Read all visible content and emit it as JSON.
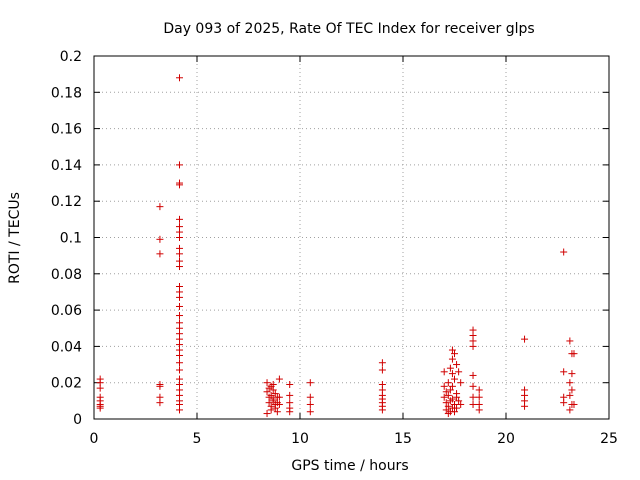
{
  "chart_data": {
    "type": "scatter",
    "title": "Day 093 of 2025, Rate Of TEC Index for receiver glps",
    "xlabel": "GPS time / hours",
    "ylabel": "ROTI / TECUs",
    "xlim": [
      0,
      25
    ],
    "ylim": [
      0,
      0.2
    ],
    "xticks": [
      "0",
      "5",
      "10",
      "15",
      "20",
      "25"
    ],
    "yticks": [
      "0",
      "0.02",
      "0.04",
      "0.06",
      "0.08",
      "0.1",
      "0.12",
      "0.14",
      "0.16",
      "0.18",
      "0.2"
    ],
    "grid": true,
    "marker": "plus",
    "color": "#d00000",
    "series": [
      {
        "x": [
          0.3,
          0.3,
          0.3,
          0.3,
          0.3,
          0.3,
          0.3,
          0.3,
          3.2,
          3.2,
          3.2,
          3.2,
          3.2,
          3.2,
          3.2,
          4.15,
          4.15,
          4.15,
          4.15,
          4.15,
          4.15,
          4.15,
          4.15,
          4.15,
          4.15,
          4.15,
          4.15,
          4.15,
          4.15,
          4.15,
          4.15,
          4.15,
          4.15,
          4.15,
          4.15,
          4.15,
          4.15,
          4.15,
          4.15,
          4.15,
          4.15,
          4.15,
          4.15,
          4.15,
          4.15,
          4.15,
          4.15,
          4.15,
          8.4,
          8.4,
          8.5,
          8.5,
          8.6,
          8.6,
          8.7,
          8.7,
          8.8,
          8.8,
          8.9,
          8.9,
          8.5,
          8.6,
          8.7,
          8.8,
          8.4,
          8.9,
          8.6,
          8.7,
          9.0,
          9.0,
          9.0,
          9.5,
          9.5,
          9.5,
          9.5,
          9.5,
          10.5,
          10.5,
          10.5,
          10.5,
          14.0,
          14.0,
          14.0,
          14.0,
          14.0,
          14.0,
          14.0,
          14.0,
          14.0,
          17.0,
          17.0,
          17.0,
          17.1,
          17.1,
          17.1,
          17.2,
          17.2,
          17.2,
          17.3,
          17.3,
          17.3,
          17.4,
          17.4,
          17.4,
          17.4,
          17.4,
          17.5,
          17.5,
          17.5,
          17.6,
          17.6,
          17.6,
          17.7,
          17.7,
          17.8,
          17.8,
          17.5,
          17.3,
          17.2,
          17.6,
          17.4,
          18.4,
          18.4,
          18.4,
          18.4,
          18.4,
          18.4,
          18.4,
          18.4,
          18.7,
          18.7,
          18.7,
          18.7,
          20.9,
          20.9,
          20.9,
          20.9,
          20.9,
          22.8,
          22.8,
          22.8,
          22.8,
          23.1,
          23.1,
          23.1,
          23.2,
          23.2,
          23.2,
          23.2,
          23.3,
          23.3,
          23.1
        ],
        "y": [
          0.006,
          0.008,
          0.01,
          0.012,
          0.017,
          0.02,
          0.022,
          0.007,
          0.117,
          0.099,
          0.091,
          0.019,
          0.018,
          0.012,
          0.009,
          0.188,
          0.14,
          0.13,
          0.129,
          0.11,
          0.106,
          0.103,
          0.1,
          0.094,
          0.091,
          0.087,
          0.084,
          0.073,
          0.07,
          0.067,
          0.062,
          0.057,
          0.053,
          0.05,
          0.047,
          0.044,
          0.041,
          0.038,
          0.035,
          0.031,
          0.027,
          0.022,
          0.019,
          0.016,
          0.013,
          0.01,
          0.008,
          0.005,
          0.02,
          0.015,
          0.012,
          0.009,
          0.007,
          0.018,
          0.016,
          0.011,
          0.006,
          0.014,
          0.009,
          0.004,
          0.017,
          0.013,
          0.01,
          0.008,
          0.003,
          0.012,
          0.005,
          0.019,
          0.022,
          0.012,
          0.008,
          0.019,
          0.013,
          0.009,
          0.006,
          0.004,
          0.02,
          0.012,
          0.008,
          0.004,
          0.031,
          0.027,
          0.019,
          0.016,
          0.013,
          0.011,
          0.009,
          0.007,
          0.005,
          0.026,
          0.018,
          0.012,
          0.015,
          0.009,
          0.005,
          0.02,
          0.013,
          0.007,
          0.028,
          0.016,
          0.01,
          0.038,
          0.033,
          0.025,
          0.018,
          0.011,
          0.036,
          0.022,
          0.008,
          0.03,
          0.014,
          0.006,
          0.026,
          0.01,
          0.02,
          0.008,
          0.004,
          0.004,
          0.003,
          0.012,
          0.006,
          0.049,
          0.046,
          0.043,
          0.04,
          0.024,
          0.018,
          0.012,
          0.008,
          0.016,
          0.012,
          0.008,
          0.005,
          0.044,
          0.016,
          0.013,
          0.01,
          0.007,
          0.092,
          0.026,
          0.012,
          0.009,
          0.043,
          0.02,
          0.013,
          0.036,
          0.025,
          0.016,
          0.008,
          0.036,
          0.008,
          0.005
        ]
      }
    ]
  }
}
